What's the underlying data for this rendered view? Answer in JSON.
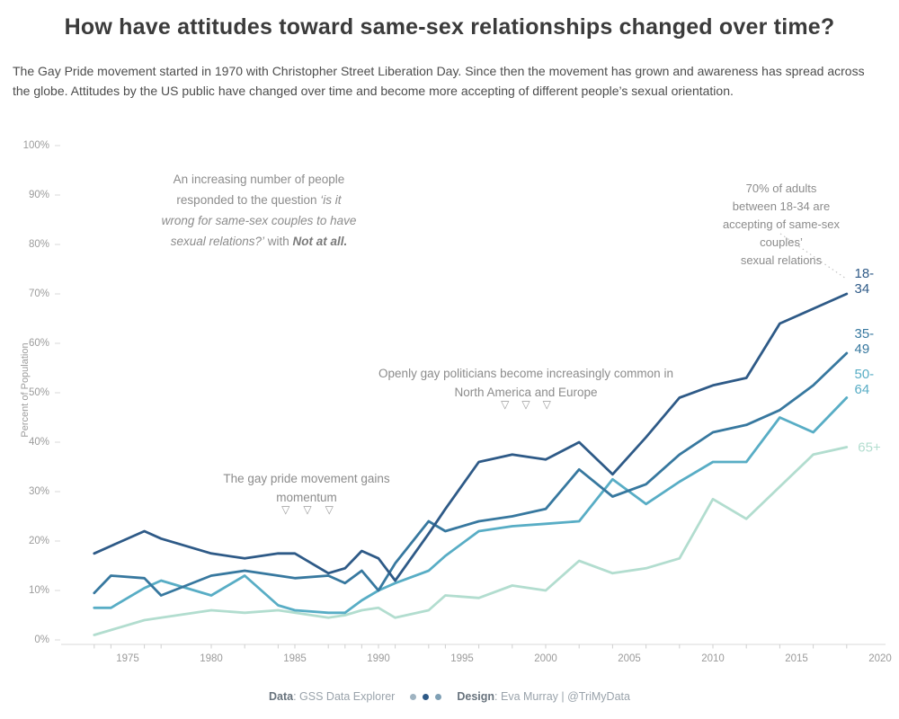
{
  "header": {
    "title": "How have attitudes toward same-sex relationships changed over time?",
    "subtitle": "The Gay Pride movement started in 1970 with Christopher Street Liberation Day. Since then the movement has grown and awareness has spread across the globe. Attitudes by the US public have changed over time and become more accepting of different people’s sexual orientation."
  },
  "annotations": {
    "marker_glyph": "▽",
    "increasing_response": {
      "line1": "An increasing number of people",
      "line2_regular": "responded to the question ",
      "line2_italic": "‘is it",
      "line3_italic": "wrong for same-sex couples to have",
      "line4_italic": "sexual relations?’",
      "line4_mid": " with ",
      "line4_bold_italic": "Not at all."
    },
    "seventy_percent": {
      "line1": "70% of adults between 18-34 are",
      "line2": "accepting of same-sex couples’",
      "line3": "sexual relations"
    },
    "gay_politicians": {
      "line1": "Openly gay politicians become increasingly common in",
      "line2": "North America and Europe"
    },
    "gay_pride": {
      "line1": "The gay pride movement gains",
      "line2": "momentum"
    }
  },
  "axis": {
    "y_title": "Percent of Population",
    "y_ticks": [
      "0%",
      "10%",
      "20%",
      "30%",
      "40%",
      "50%",
      "60%",
      "70%",
      "80%",
      "90%",
      "100%"
    ],
    "x_ticks": [
      "1975",
      "1980",
      "1985",
      "1990",
      "1995",
      "2000",
      "2005",
      "2010",
      "2015",
      "2020"
    ]
  },
  "chart_data": {
    "type": "line",
    "title": "How have attitudes toward same-sex relationships changed over time?",
    "xlabel": "",
    "ylabel": "Percent of Population",
    "ylim": [
      0,
      100
    ],
    "xlim": [
      1973,
      2020
    ],
    "grid": false,
    "legend_position": "end-of-line labels",
    "x": [
      1973,
      1974,
      1976,
      1977,
      1980,
      1982,
      1984,
      1985,
      1987,
      1988,
      1989,
      1990,
      1991,
      1993,
      1994,
      1996,
      1998,
      2000,
      2002,
      2004,
      2006,
      2008,
      2010,
      2012,
      2014,
      2016,
      2018
    ],
    "series": [
      {
        "name": "65+",
        "color": "#B2DDCF",
        "values": [
          1,
          2,
          4,
          4.5,
          6,
          5.5,
          6,
          5.5,
          4.5,
          5,
          6,
          6.5,
          4.5,
          6,
          9,
          8.5,
          11,
          10,
          16,
          13.5,
          14.5,
          16.5,
          28.5,
          24.5,
          31,
          37.5,
          39
        ]
      },
      {
        "name": "50-64",
        "color": "#58ADC5",
        "values": [
          6.5,
          6.5,
          10.5,
          12,
          9,
          13,
          7,
          6,
          5.5,
          5.5,
          8,
          10,
          11.5,
          14,
          17,
          22,
          23,
          23.5,
          24,
          32.5,
          27.5,
          32,
          36,
          36,
          45,
          42,
          49
        ]
      },
      {
        "name": "35-49",
        "color": "#37789F",
        "values": [
          9.5,
          13,
          12.5,
          9,
          13,
          14,
          13,
          12.5,
          13,
          11.5,
          14,
          10,
          15.5,
          24,
          22,
          24,
          25,
          26.5,
          34.5,
          29,
          31.5,
          37.5,
          42,
          43.5,
          46.5,
          51.5,
          58
        ]
      },
      {
        "name": "18-34",
        "color": "#2E5A87",
        "values": [
          17.5,
          19,
          22,
          20.5,
          17.5,
          16.5,
          17.5,
          17.5,
          13.5,
          14.5,
          18,
          16.5,
          12,
          21.5,
          26.5,
          36,
          37.5,
          36.5,
          40,
          33.5,
          41,
          49,
          51.5,
          53,
          64,
          67,
          70
        ]
      }
    ]
  },
  "footer": {
    "data_label": "Data",
    "data_value": ": GSS Data Explorer",
    "design_label": "Design",
    "design_value": ": Eva Murray | @TriMyData",
    "dot_colors": [
      "#9FB3C1",
      "#2E5A87",
      "#7FA0B5"
    ]
  }
}
